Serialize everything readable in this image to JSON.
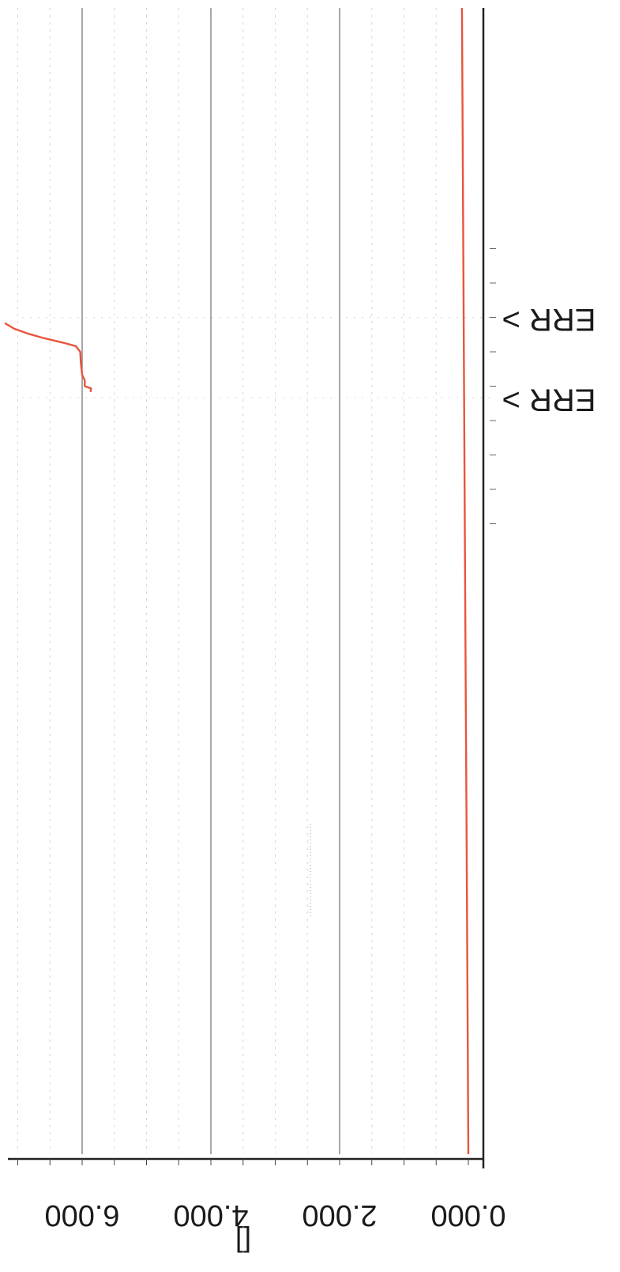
{
  "chart_data": {
    "type": "line",
    "orientation": "rotated 180 degrees",
    "ylabel": "[]",
    "ylim": [
      0,
      7.25
    ],
    "yticks": [
      {
        "value": 0,
        "label": "0.000"
      },
      {
        "value": 2,
        "label": "2.000"
      },
      {
        "value": 4,
        "label": "4.000"
      },
      {
        "value": 6,
        "label": "6.000"
      }
    ],
    "grid": true,
    "markers": [
      {
        "label": "ERR >",
        "x": 0.73
      },
      {
        "label": "ERR >",
        "x": 0.66
      }
    ],
    "series": [
      {
        "color": "#e8553c",
        "points": [
          [
            0.0,
            0.0
          ],
          [
            0.1,
            0.01
          ],
          [
            0.2,
            0.02
          ],
          [
            0.3,
            0.03
          ],
          [
            0.4,
            0.04
          ],
          [
            0.5,
            0.05
          ],
          [
            0.6,
            0.06
          ],
          [
            0.7,
            0.07
          ],
          [
            0.8,
            0.08
          ],
          [
            0.9,
            0.09
          ],
          [
            0.95,
            0.095
          ],
          [
            1.0,
            0.1
          ]
        ]
      },
      {
        "color": "#e8553c",
        "points": [
          [
            0.665,
            5.87
          ],
          [
            0.668,
            5.86
          ],
          [
            0.67,
            5.96
          ],
          [
            0.675,
            5.96
          ],
          [
            0.68,
            6.0
          ],
          [
            0.69,
            6.02
          ],
          [
            0.7,
            6.03
          ],
          [
            0.705,
            6.1
          ],
          [
            0.708,
            6.3
          ],
          [
            0.712,
            6.6
          ],
          [
            0.716,
            6.85
          ],
          [
            0.72,
            7.05
          ],
          [
            0.725,
            7.2
          ]
        ]
      }
    ]
  }
}
